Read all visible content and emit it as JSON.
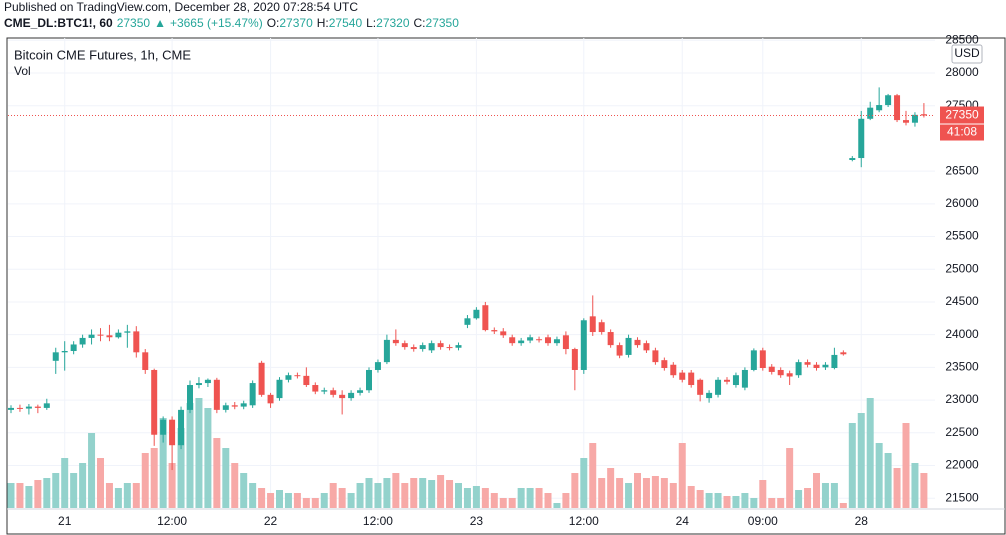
{
  "header": {
    "published": "Published on TradingView.com, December 28, 2020 07:28:54 UTC",
    "symbol": "CME_DL:BTC1!, 60",
    "last": "27350",
    "arrow": "▲",
    "change": "+3665 (+15.47%)",
    "o_label": "O:",
    "o": "27370",
    "h_label": "H:",
    "h": "27540",
    "l_label": "L:",
    "l": "27320",
    "c_label": "C:",
    "c": "27350"
  },
  "chart_data": {
    "type": "candlestick",
    "title": "Bitcoin CME Futures, 1h, CME",
    "volume_label": "Vol",
    "currency": "USD",
    "up_color": "#26a69a",
    "down_color": "#ef5350",
    "volume_up_color": "#93d2cc",
    "volume_down_color": "#f7a9a7",
    "last_price": 27350,
    "countdown": "41:08",
    "grid": true,
    "ylim": [
      21350,
      28535
    ],
    "yticks": [
      21500,
      22000,
      22500,
      23000,
      23500,
      24000,
      24500,
      25000,
      25500,
      26000,
      26500,
      27500,
      28000,
      28500
    ],
    "categories": [
      null,
      null,
      null,
      null,
      null,
      null,
      "21",
      null,
      null,
      null,
      null,
      null,
      null,
      null,
      null,
      null,
      null,
      null,
      "12:00",
      null,
      null,
      null,
      null,
      null,
      null,
      null,
      null,
      null,
      null,
      "22",
      null,
      null,
      null,
      null,
      null,
      null,
      null,
      null,
      null,
      null,
      null,
      "12:00",
      null,
      null,
      null,
      null,
      null,
      null,
      null,
      null,
      null,
      null,
      "23",
      null,
      null,
      null,
      null,
      null,
      null,
      null,
      null,
      null,
      null,
      null,
      "12:00",
      null,
      null,
      null,
      null,
      null,
      null,
      null,
      null,
      null,
      null,
      "24",
      null,
      null,
      null,
      null,
      null,
      null,
      null,
      null,
      "09:00",
      null,
      null,
      null,
      null,
      null,
      null,
      null,
      null,
      null,
      null,
      "28",
      null,
      null,
      null,
      null,
      null,
      null,
      null
    ],
    "open": [
      22850,
      22880,
      22870,
      22900,
      22880,
      23600,
      23730,
      23750,
      23850,
      23950,
      24000,
      23990,
      23960,
      24030,
      24050,
      23730,
      23460,
      22470,
      22700,
      22310,
      22850,
      23230,
      23260,
      23310,
      22850,
      22920,
      22900,
      22920,
      23570,
      23080,
      23030,
      23310,
      23380,
      23370,
      23230,
      23130,
      23150,
      23080,
      23030,
      23110,
      23150,
      23460,
      23580,
      23920,
      23870,
      23810,
      23780,
      23760,
      23870,
      23810,
      23800,
      24150,
      24250,
      24450,
      24070,
      24050,
      23960,
      23870,
      23910,
      23930,
      23960,
      23870,
      23990,
      23780,
      23460,
      24280,
      24190,
      24040,
      23840,
      23690,
      23920,
      23870,
      23760,
      23610,
      23540,
      23420,
      23420,
      23310,
      23030,
      23080,
      23310,
      23230,
      23190,
      23460,
      23760,
      23510,
      23460,
      23410,
      23380,
      23580,
      23540,
      23500,
      23490,
      23730,
      26670,
      26700,
      27300,
      27430,
      27510,
      27660,
      27280,
      27240,
      27370
    ],
    "high": [
      22920,
      22930,
      22940,
      22930,
      23020,
      23800,
      23900,
      23900,
      24000,
      24080,
      24100,
      24150,
      24080,
      24150,
      24130,
      23780,
      23480,
      22750,
      22750,
      22900,
      23300,
      23350,
      23330,
      23340,
      22960,
      22970,
      22990,
      23300,
      23600,
      23110,
      23350,
      23420,
      23420,
      23500,
      23270,
      23190,
      23190,
      23150,
      23150,
      23190,
      23500,
      23620,
      24000,
      24080,
      23910,
      23850,
      23880,
      23910,
      23910,
      23850,
      23880,
      24300,
      24420,
      24500,
      24110,
      24100,
      24000,
      23950,
      24000,
      23970,
      24000,
      23970,
      24050,
      23800,
      24250,
      24600,
      24230,
      24080,
      23880,
      24000,
      23960,
      23910,
      23800,
      23650,
      23580,
      23460,
      23460,
      23330,
      23150,
      23350,
      23350,
      23420,
      23500,
      23790,
      23800,
      23550,
      23500,
      23450,
      23620,
      23620,
      23580,
      23580,
      23800,
      23760,
      26730,
      27420,
      27560,
      27780,
      27680,
      27680,
      27420,
      27400,
      27540
    ],
    "low": [
      22800,
      22820,
      22780,
      22800,
      22850,
      23400,
      23450,
      23700,
      23800,
      23850,
      23900,
      23900,
      23940,
      23800,
      23650,
      23400,
      22300,
      22350,
      21930,
      22250,
      22800,
      23180,
      23200,
      22800,
      22810,
      22860,
      22860,
      22880,
      23050,
      22880,
      22990,
      23270,
      23330,
      23200,
      23090,
      23090,
      23040,
      22780,
      22990,
      23070,
      23110,
      23420,
      23550,
      23830,
      23770,
      23740,
      23740,
      23720,
      23770,
      23760,
      23760,
      24100,
      24230,
      24050,
      24010,
      23950,
      23830,
      23830,
      23870,
      23880,
      23830,
      23830,
      23700,
      23150,
      23400,
      23980,
      24000,
      23800,
      23640,
      23650,
      23800,
      23720,
      23540,
      23450,
      23340,
      23270,
      23190,
      22980,
      22960,
      23040,
      23240,
      23190,
      23150,
      23440,
      23450,
      23390,
      23340,
      23230,
      23340,
      23500,
      23450,
      23460,
      23470,
      23680,
      26650,
      26560,
      27280,
      27400,
      27480,
      27250,
      27200,
      27180,
      27320
    ],
    "close": [
      22880,
      22870,
      22900,
      22880,
      22950,
      23730,
      23750,
      23850,
      23950,
      24000,
      23990,
      23960,
      24030,
      24050,
      23730,
      23460,
      22470,
      22700,
      22310,
      22850,
      23230,
      23260,
      23310,
      22850,
      22920,
      22900,
      22950,
      23260,
      23080,
      22950,
      23310,
      23380,
      23370,
      23230,
      23130,
      23150,
      23080,
      23030,
      23110,
      23150,
      23460,
      23580,
      23920,
      23870,
      23810,
      23780,
      23840,
      23870,
      23810,
      23800,
      23840,
      24250,
      24380,
      24070,
      24050,
      23990,
      23870,
      23910,
      23960,
      23920,
      23870,
      23930,
      23780,
      23460,
      24220,
      24040,
      24040,
      23840,
      23680,
      23950,
      23840,
      23760,
      23580,
      23490,
      23380,
      23310,
      23230,
      23080,
      23110,
      23310,
      23280,
      23380,
      23460,
      23760,
      23490,
      23430,
      23380,
      23360,
      23580,
      23540,
      23490,
      23540,
      23690,
      23700,
      26700,
      27300,
      27470,
      27510,
      27660,
      27280,
      27240,
      27360,
      27350
    ],
    "volume": [
      25,
      25,
      22,
      28,
      30,
      35,
      50,
      35,
      45,
      75,
      50,
      25,
      20,
      25,
      25,
      55,
      60,
      90,
      45,
      80,
      105,
      110,
      100,
      70,
      60,
      45,
      35,
      25,
      20,
      15,
      18,
      15,
      15,
      10,
      10,
      15,
      25,
      20,
      15,
      25,
      30,
      25,
      30,
      35,
      25,
      30,
      30,
      28,
      33,
      28,
      25,
      20,
      22,
      20,
      15,
      10,
      10,
      20,
      20,
      20,
      15,
      5,
      15,
      35,
      50,
      65,
      30,
      40,
      30,
      25,
      35,
      30,
      32,
      30,
      25,
      65,
      22,
      18,
      15,
      15,
      12,
      12,
      15,
      10,
      28,
      10,
      10,
      60,
      18,
      20,
      35,
      25,
      25,
      5,
      85,
      95,
      110,
      65,
      55,
      40,
      85,
      45,
      35
    ]
  }
}
